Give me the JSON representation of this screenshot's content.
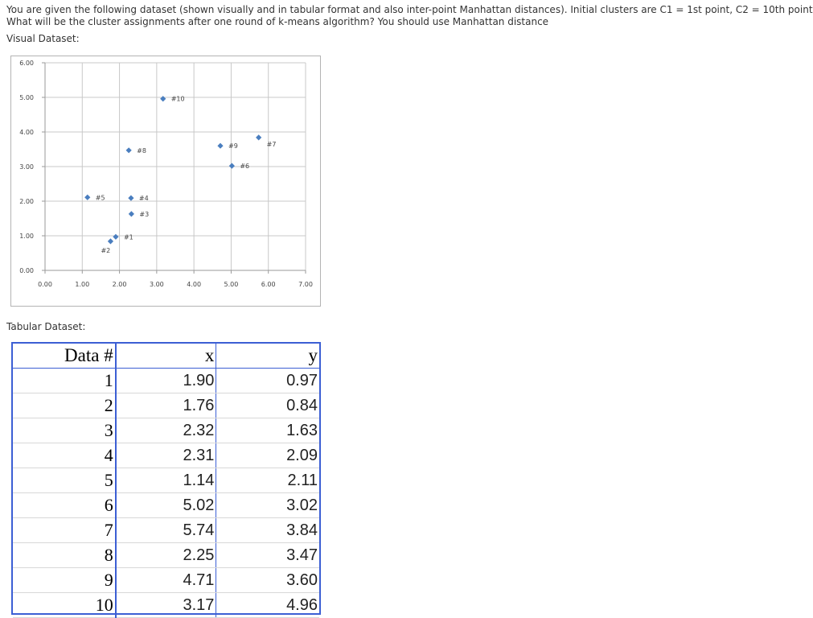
{
  "question": {
    "line1": "You are given the following dataset (shown visually and in tabular format and also inter-point Manhattan distances). Initial clusters are C1 = 1st point, C2 = 10th point",
    "line2": "What will be the cluster assignments after one round of k-means algorithm? You should use Manhattan distance"
  },
  "visual_label": "Visual Dataset:",
  "tabular_label": "Tabular Dataset:",
  "colors": {
    "point": "#4a7ebf",
    "grid": "#c8c8c8",
    "axis": "#9a9a9a",
    "table_border": "#3c5fd4"
  },
  "chart_data": {
    "type": "scatter",
    "xlim": [
      0,
      7
    ],
    "ylim": [
      0,
      6
    ],
    "x_ticks": [
      "0.00",
      "1.00",
      "2.00",
      "3.00",
      "4.00",
      "5.00",
      "6.00",
      "7.00"
    ],
    "y_ticks": [
      "0.00",
      "1.00",
      "2.00",
      "3.00",
      "4.00",
      "5.00",
      "6.00"
    ],
    "grid": true,
    "points": [
      {
        "label": "#1",
        "x": 1.9,
        "y": 0.97
      },
      {
        "label": "#2",
        "x": 1.76,
        "y": 0.84
      },
      {
        "label": "#3",
        "x": 2.32,
        "y": 1.63
      },
      {
        "label": "#4",
        "x": 2.31,
        "y": 2.09
      },
      {
        "label": "#5",
        "x": 1.14,
        "y": 2.11
      },
      {
        "label": "#6",
        "x": 5.02,
        "y": 3.02
      },
      {
        "label": "#7",
        "x": 5.74,
        "y": 3.84
      },
      {
        "label": "#8",
        "x": 2.25,
        "y": 3.47
      },
      {
        "label": "#9",
        "x": 4.71,
        "y": 3.6
      },
      {
        "label": "#10",
        "x": 3.17,
        "y": 4.96
      }
    ]
  },
  "table": {
    "headers": [
      "Data #",
      "x",
      "y"
    ],
    "rows": [
      [
        "1",
        "1.90",
        "0.97"
      ],
      [
        "2",
        "1.76",
        "0.84"
      ],
      [
        "3",
        "2.32",
        "1.63"
      ],
      [
        "4",
        "2.31",
        "2.09"
      ],
      [
        "5",
        "1.14",
        "2.11"
      ],
      [
        "6",
        "5.02",
        "3.02"
      ],
      [
        "7",
        "5.74",
        "3.84"
      ],
      [
        "8",
        "2.25",
        "3.47"
      ],
      [
        "9",
        "4.71",
        "3.60"
      ],
      [
        "10",
        "3.17",
        "4.96"
      ]
    ]
  }
}
